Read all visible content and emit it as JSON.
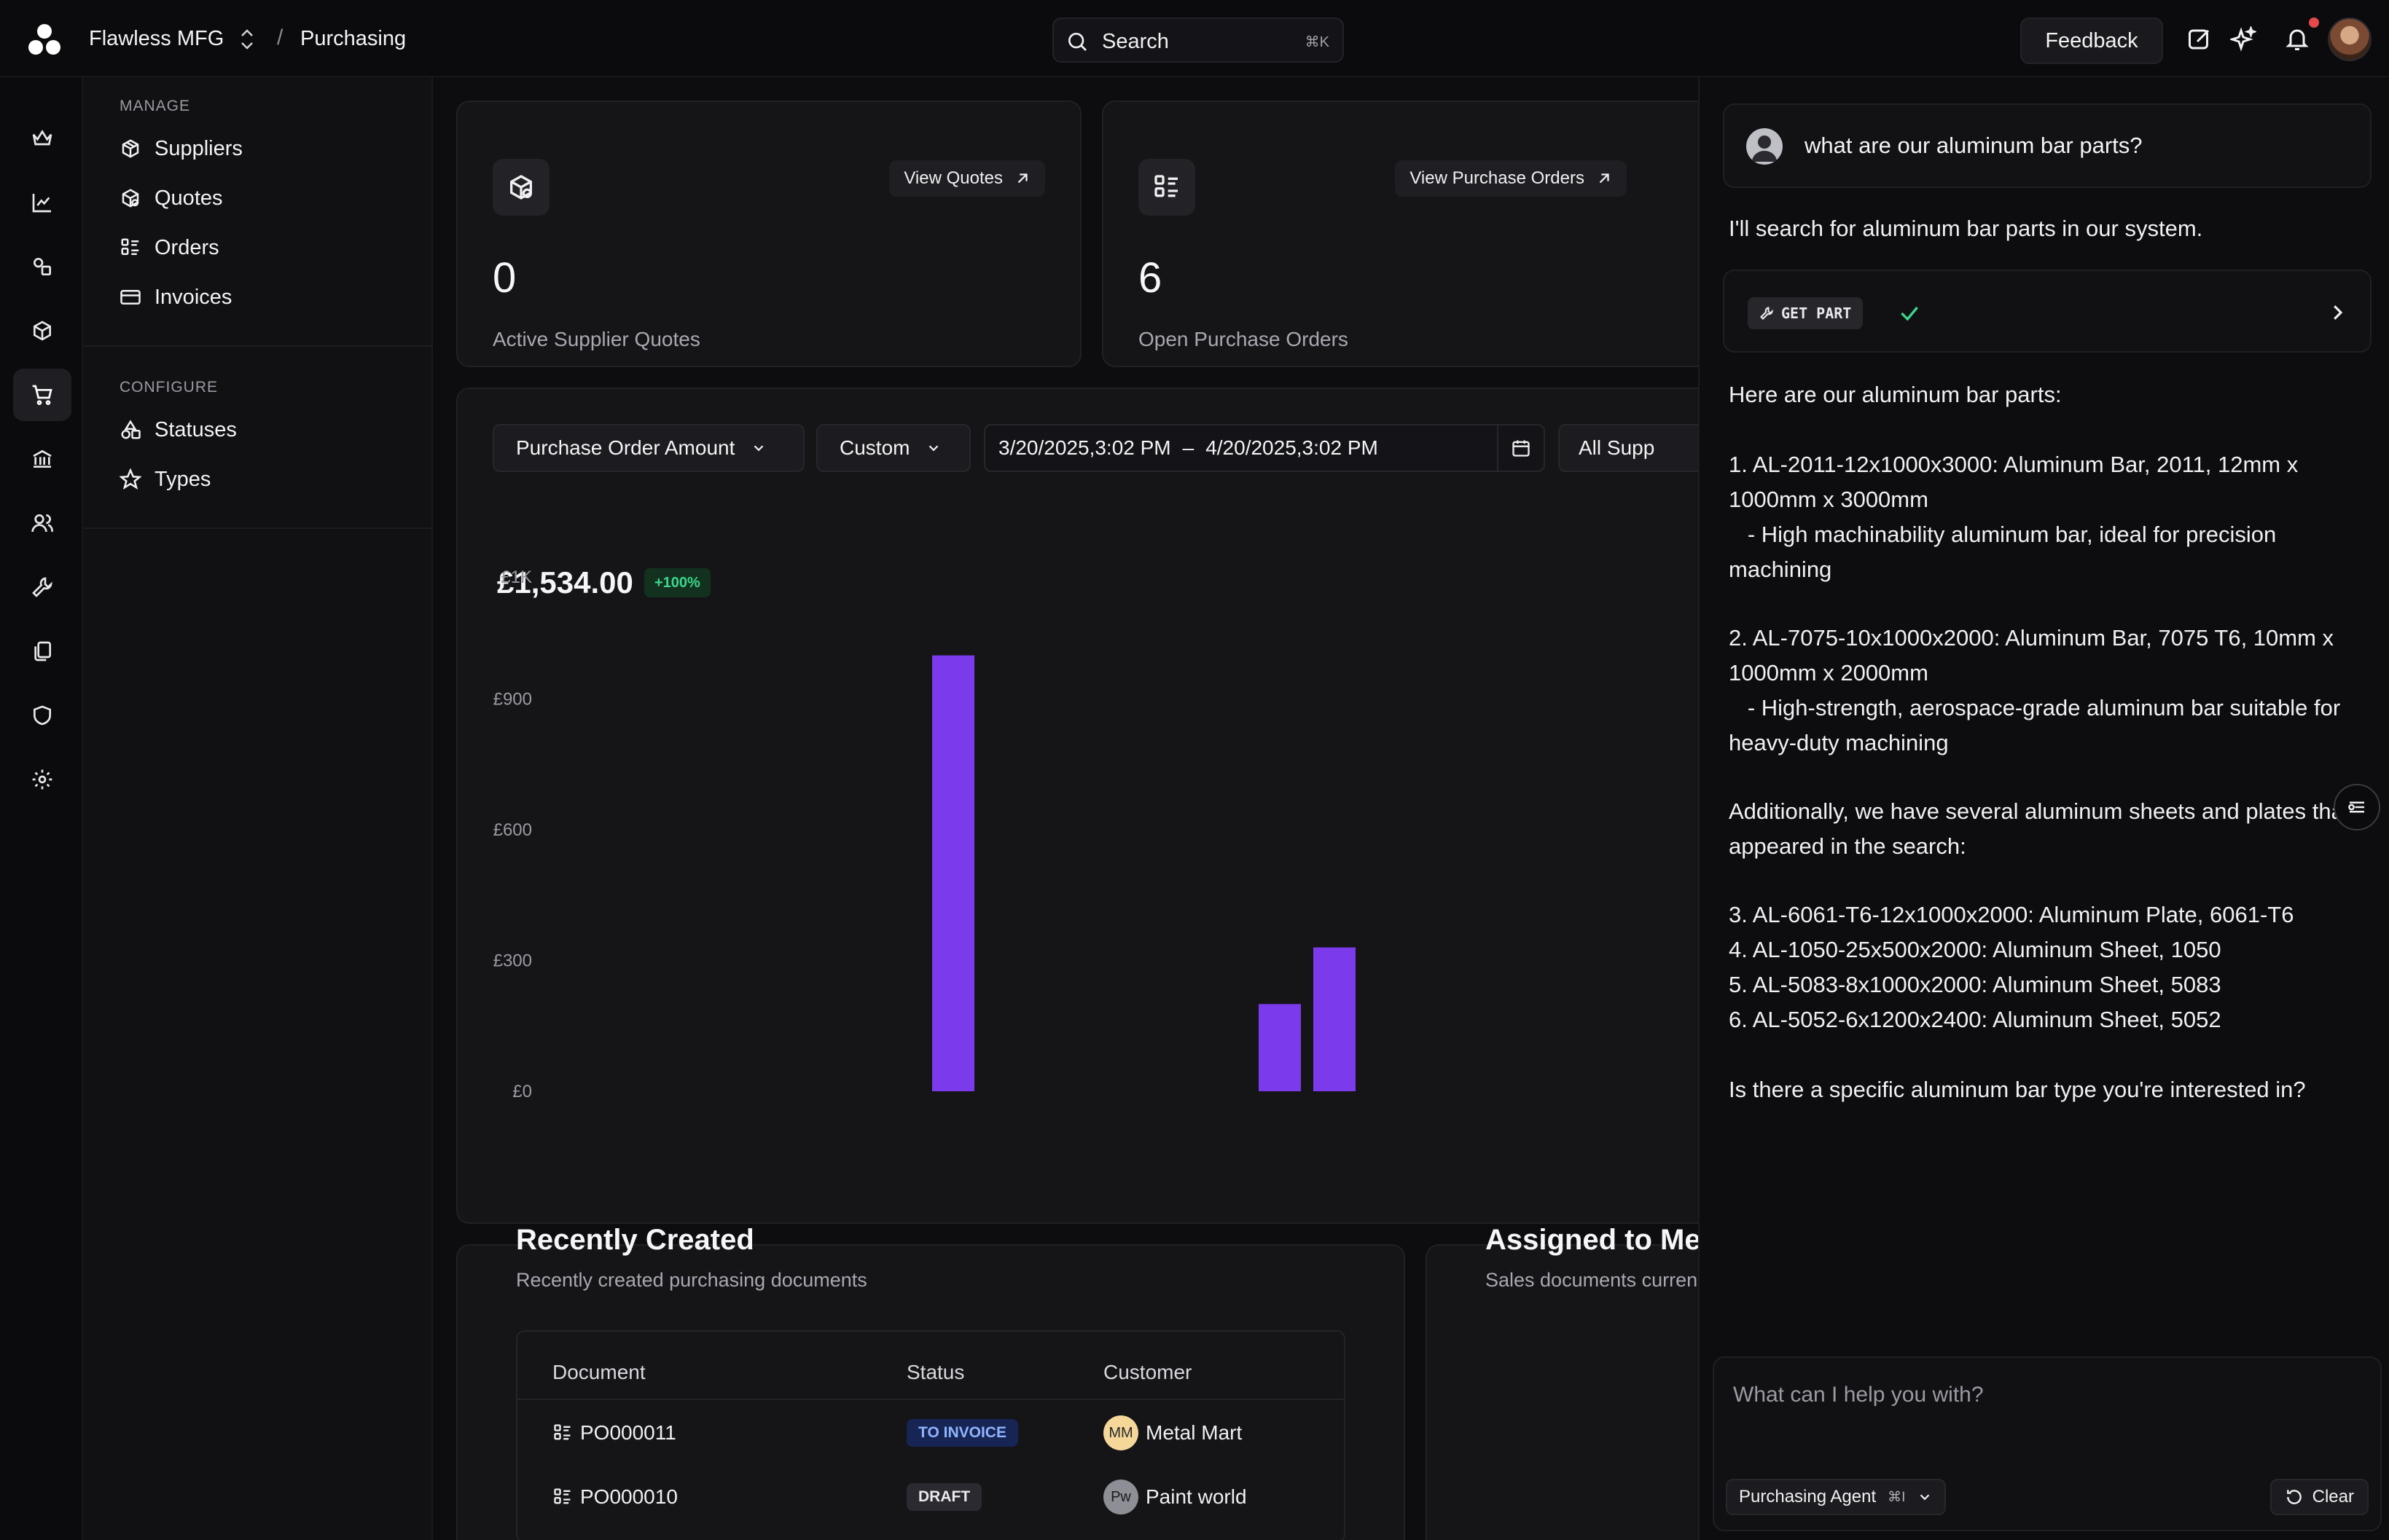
{
  "topbar": {
    "org": "Flawless MFG",
    "breadcrumb": "Purchasing",
    "search_placeholder": "Search",
    "search_shortcut": "⌘K",
    "feedback": "Feedback"
  },
  "sidebar": {
    "manage_title": "MANAGE",
    "manage_items": [
      {
        "label": "Suppliers",
        "icon": "package-icon"
      },
      {
        "label": "Quotes",
        "icon": "quote-package-icon"
      },
      {
        "label": "Orders",
        "icon": "list-icon"
      },
      {
        "label": "Invoices",
        "icon": "credit-card-icon"
      }
    ],
    "configure_title": "CONFIGURE",
    "configure_items": [
      {
        "label": "Statuses",
        "icon": "shapes-icon"
      },
      {
        "label": "Types",
        "icon": "star-icon"
      }
    ]
  },
  "cards": {
    "quotes": {
      "link": "View Quotes",
      "value": "0",
      "label": "Active Supplier Quotes"
    },
    "orders": {
      "link": "View Purchase Orders",
      "value": "6",
      "label": "Open Purchase Orders"
    }
  },
  "controls": {
    "metric": "Purchase Order Amount",
    "range": "Custom",
    "date_from": "3/20/2025,3:02 PM",
    "date_sep": "–",
    "date_to": "4/20/2025,3:02 PM",
    "supplier": "All Supp"
  },
  "summary": {
    "amount": "£1,534.00",
    "delta": "+100%"
  },
  "chart_data": {
    "type": "bar",
    "series": [
      {
        "values": [
          1000,
          200,
          330
        ]
      }
    ],
    "y_ticks": [
      "£0",
      "£300",
      "£600",
      "£900",
      "£1K"
    ],
    "ylim": [
      0,
      1180
    ],
    "grid": false,
    "bar_color": "#7c3aed"
  },
  "recent": {
    "title": "Recently Created",
    "subtitle": "Recently created purchasing documents",
    "columns": [
      "Document",
      "Status",
      "Customer"
    ],
    "rows": [
      {
        "doc": "PO000011",
        "status": "TO INVOICE",
        "customer": "Metal Mart",
        "initials": "MM"
      },
      {
        "doc": "PO000010",
        "status": "DRAFT",
        "customer": "Paint world",
        "initials": "Pw"
      }
    ]
  },
  "assigned": {
    "title": "Assigned to Me",
    "subtitle": "Sales documents curren"
  },
  "chat": {
    "user_message": "what are our aluminum bar parts?",
    "intro": "I'll search for aluminum bar parts in our system.",
    "tool": "GET PART",
    "heading": "Here are our aluminum bar parts:",
    "p1a": "1. AL-2011-12x1000x3000: Aluminum Bar, 2011, 12mm x 1000mm x 3000mm",
    "p1b": "   - High machinability aluminum bar, ideal for precision machining",
    "p2a": "2. AL-7075-10x1000x2000: Aluminum Bar, 7075 T6, 10mm x 1000mm x 2000mm",
    "p2b": "   - High-strength, aerospace-grade aluminum bar suitable for heavy-duty machining",
    "p3": "Additionally, we have several aluminum sheets and plates that appeared in the search:",
    "l3": "3. AL-6061-T6-12x1000x2000: Aluminum Plate, 6061-T6",
    "l4": "4. AL-1050-25x500x2000: Aluminum Sheet, 1050",
    "l5": "5. AL-5083-8x1000x2000: Aluminum Sheet, 5083",
    "l6": "6. AL-5052-6x1200x2400: Aluminum Sheet, 5052",
    "closing": "Is there a specific aluminum bar type you're interested in?",
    "input_placeholder": "What can I help you with?",
    "agent": "Purchasing Agent",
    "agent_shortcut": "⌘I",
    "clear": "Clear"
  }
}
